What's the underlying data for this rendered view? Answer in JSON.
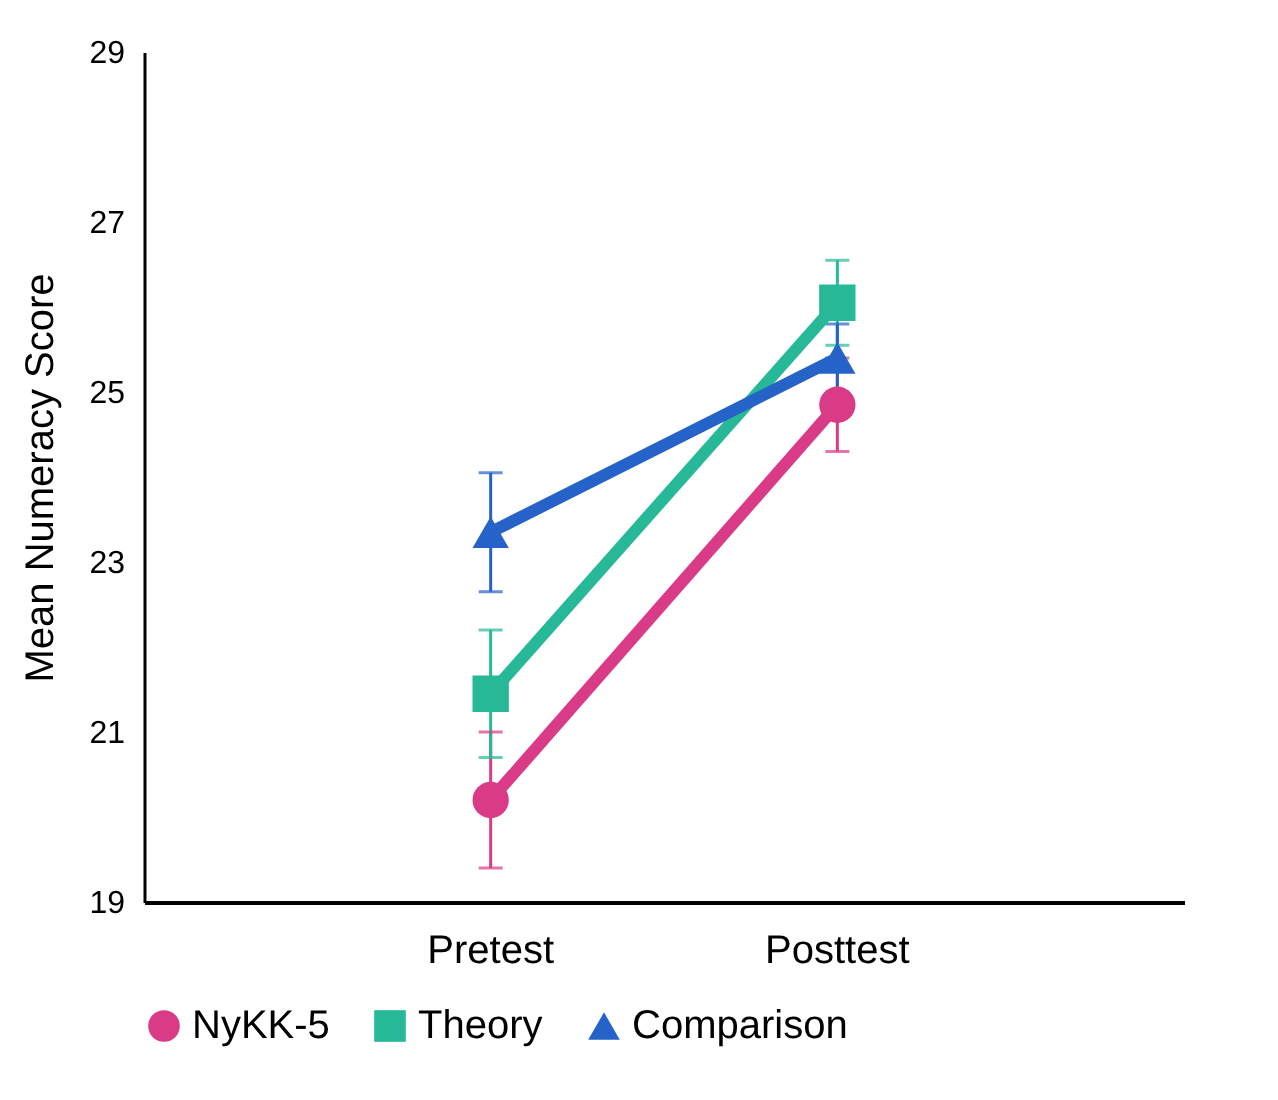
{
  "chart_data": {
    "type": "line",
    "ylabel": "Mean Numeracy Score",
    "categories": [
      "Pretest",
      "Posttest"
    ],
    "ylim": [
      19,
      29
    ],
    "yticks": [
      19,
      21,
      23,
      25,
      27,
      29
    ],
    "grid": false,
    "legend": "bottom",
    "line_style": "solid",
    "series": [
      {
        "name": "NyKK-5",
        "color": "#d93b86",
        "marker": "circle",
        "values": [
          20.2,
          24.85
        ],
        "errors": [
          0.8,
          0.55
        ]
      },
      {
        "name": "Theory",
        "color": "#26b897",
        "marker": "square",
        "values": [
          21.45,
          26.05
        ],
        "errors": [
          0.75,
          0.5
        ]
      },
      {
        "name": "Comparison",
        "color": "#2563c9",
        "marker": "triangle",
        "values": [
          23.35,
          25.4
        ],
        "errors": [
          0.7,
          0.4
        ]
      }
    ]
  }
}
